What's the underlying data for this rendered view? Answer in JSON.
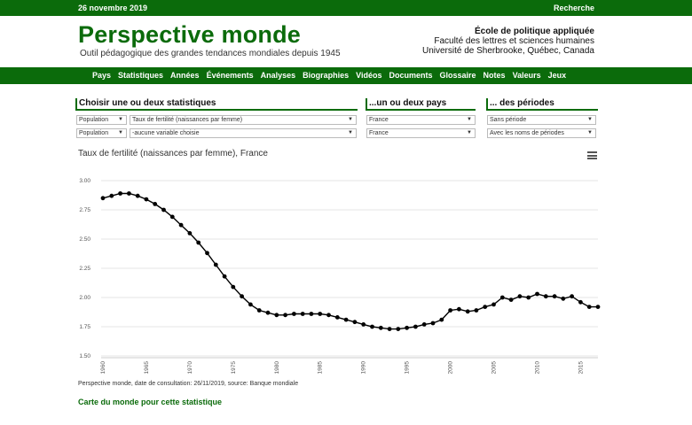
{
  "topbar": {
    "date": "26 novembre 2019",
    "search": "Recherche"
  },
  "header": {
    "title": "Perspective monde",
    "subtitle": "Outil pédagogique des grandes tendances mondiales depuis 1945",
    "institution": {
      "name": "École de politique appliquée",
      "faculty": "Faculté des lettres et sciences humaines",
      "university": "Université de Sherbrooke, Québec, Canada"
    }
  },
  "nav": [
    "Pays",
    "Statistiques",
    "Années",
    "Événements",
    "Analyses",
    "Biographies",
    "Vidéos",
    "Documents",
    "Glossaire",
    "Notes",
    "Valeurs",
    "Jeux"
  ],
  "selectors": {
    "stats": {
      "title": "Choisir une ou deux statistiques",
      "category1": "Population",
      "variable1": "Taux de fertilité (naissances par femme)",
      "category2": "Population",
      "variable2": "-aucune variable choisie"
    },
    "countries": {
      "title": "...un ou deux pays",
      "country1": "France",
      "country2": "France"
    },
    "periods": {
      "title": "... des périodes",
      "period1": "Sans période",
      "period2": "Avec les noms de périodes"
    }
  },
  "chart_title": "Taux de fertilité (naissances par femme), France",
  "credit": "Perspective monde, date de consultation: 26/11/2019, source: Banque mondiale",
  "map_link": "Carte du monde pour cette statistique",
  "colors": {
    "brand": "#0b6b0b",
    "line": "#000000",
    "grid": "#e6e6e6"
  },
  "chart_data": {
    "type": "line",
    "title": "",
    "xlabel": "",
    "ylabel": "",
    "ylim": [
      1.5,
      3.0
    ],
    "y_ticks": [
      "1.50",
      "1.75",
      "2.00",
      "2.25",
      "2.50",
      "2.75",
      "3.00"
    ],
    "x_ticks": [
      "1960",
      "1965",
      "1970",
      "1975",
      "1980",
      "1985",
      "1990",
      "1995",
      "2000",
      "2005",
      "2010",
      "2015"
    ],
    "grid": true,
    "series": [
      {
        "name": "",
        "x": [
          1960,
          1961,
          1962,
          1963,
          1964,
          1965,
          1966,
          1967,
          1968,
          1969,
          1970,
          1971,
          1972,
          1973,
          1974,
          1975,
          1976,
          1977,
          1978,
          1979,
          1980,
          1981,
          1982,
          1983,
          1984,
          1985,
          1986,
          1987,
          1988,
          1989,
          1990,
          1991,
          1992,
          1993,
          1994,
          1995,
          1996,
          1997,
          1998,
          1999,
          2000,
          2001,
          2002,
          2003,
          2004,
          2005,
          2006,
          2007,
          2008,
          2009,
          2010,
          2011,
          2012,
          2013,
          2014,
          2015,
          2016,
          2017
        ],
        "values": [
          2.85,
          2.87,
          2.89,
          2.89,
          2.87,
          2.84,
          2.8,
          2.75,
          2.69,
          2.62,
          2.55,
          2.47,
          2.38,
          2.28,
          2.18,
          2.09,
          2.01,
          1.94,
          1.89,
          1.87,
          1.85,
          1.85,
          1.86,
          1.86,
          1.86,
          1.86,
          1.85,
          1.83,
          1.81,
          1.79,
          1.77,
          1.75,
          1.74,
          1.73,
          1.73,
          1.74,
          1.75,
          1.77,
          1.78,
          1.81,
          1.89,
          1.9,
          1.88,
          1.89,
          1.92,
          1.94,
          2.0,
          1.98,
          2.01,
          2.0,
          2.03,
          2.01,
          2.01,
          1.99,
          2.01,
          1.96,
          1.92,
          1.92
        ]
      }
    ]
  }
}
